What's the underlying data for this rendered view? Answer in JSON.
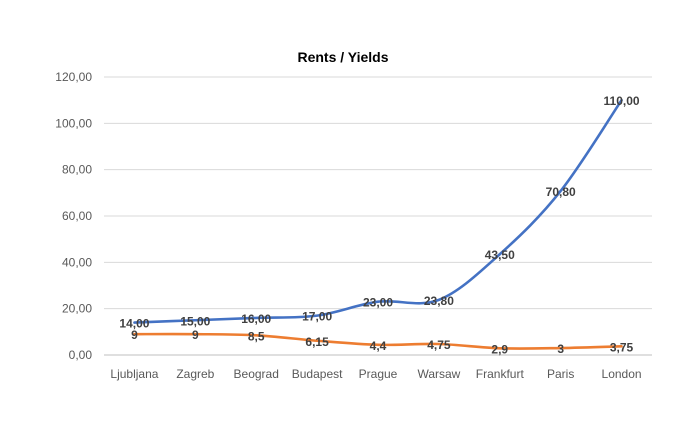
{
  "chart_data": {
    "type": "line",
    "title": "Rents / Yields",
    "xlabel": "",
    "ylabel": "",
    "categories": [
      "Ljubljana",
      "Zagreb",
      "Beograd",
      "Budapest",
      "Prague",
      "Warsaw",
      "Frankfurt",
      "Paris",
      "London"
    ],
    "ylim": [
      0,
      120
    ],
    "yticks": [
      0,
      20,
      40,
      60,
      80,
      100,
      120
    ],
    "ytick_labels": [
      "0,00",
      "20,00",
      "40,00",
      "60,00",
      "80,00",
      "100,00",
      "120,00"
    ],
    "grid": true,
    "legend": "none",
    "series": [
      {
        "color": "#4472C4",
        "values": [
          14,
          15,
          16,
          17,
          23,
          23.8,
          43.5,
          70.8,
          110
        ],
        "labels": [
          "14,00",
          "15,00",
          "16,00",
          "17,00",
          "23,00",
          "23,80",
          "43,50",
          "70,80",
          "110,00"
        ]
      },
      {
        "color": "#ED7D31",
        "values": [
          9,
          9,
          8.5,
          6.15,
          4.4,
          4.75,
          2.9,
          3,
          3.75
        ],
        "labels": [
          "9",
          "9",
          "8,5",
          "6,15",
          "4,4",
          "4,75",
          "2,9",
          "3",
          "3,75"
        ]
      }
    ]
  }
}
